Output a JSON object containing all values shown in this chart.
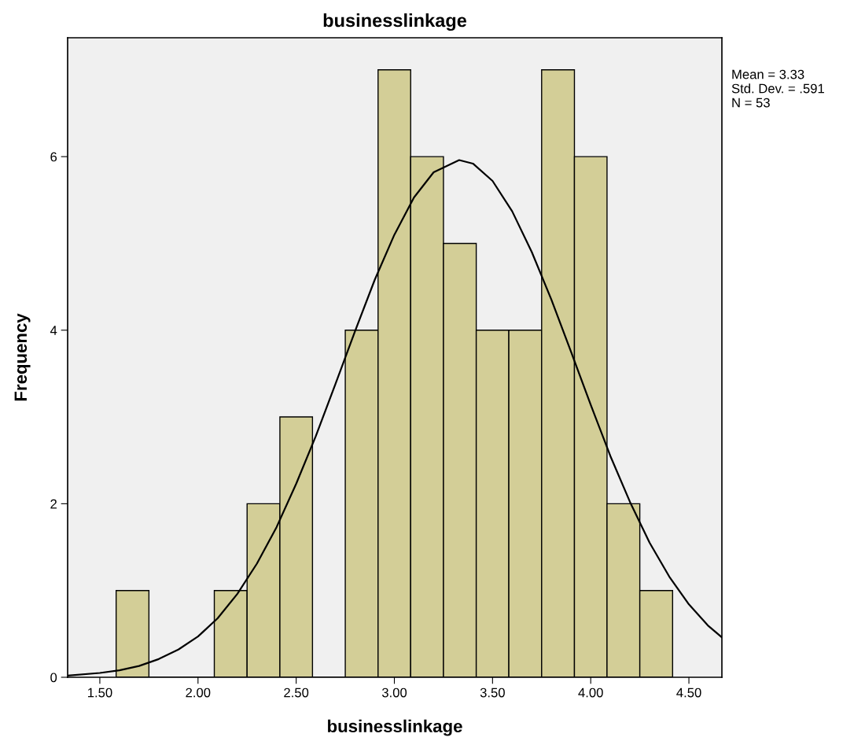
{
  "chart_data": {
    "type": "histogram",
    "title": "businesslinkage",
    "xlabel": "businesslinkage",
    "ylabel": "Frequency",
    "xlim": [
      1.336,
      4.668
    ],
    "ylim": [
      0,
      7.37
    ],
    "xticks": [
      {
        "value": 1.5,
        "label": "1.50"
      },
      {
        "value": 2.0,
        "label": "2.00"
      },
      {
        "value": 2.5,
        "label": "2.50"
      },
      {
        "value": 3.0,
        "label": "3.00"
      },
      {
        "value": 3.5,
        "label": "3.50"
      },
      {
        "value": 4.0,
        "label": "4.00"
      },
      {
        "value": 4.5,
        "label": "4.50"
      }
    ],
    "yticks": [
      0,
      2,
      4,
      6
    ],
    "grid": false,
    "legend": false,
    "marker": "none",
    "series": [
      {
        "color": "#d3ce97",
        "bins": [
          1.583,
          1.75,
          1.917,
          2.083,
          2.25,
          2.417,
          2.583,
          2.75,
          2.917,
          3.083,
          3.25,
          3.417,
          3.583,
          3.75,
          3.917,
          4.083,
          4.25,
          4.417
        ],
        "values": [
          1,
          0,
          0,
          1,
          2,
          3,
          0,
          4,
          7,
          6,
          5,
          4,
          4,
          7,
          6,
          2,
          1
        ]
      },
      {
        "type": "line",
        "color": "#000000",
        "line_style": "solid",
        "x": [
          1.336,
          1.5,
          1.6,
          1.7,
          1.8,
          1.9,
          2.0,
          2.1,
          2.2,
          2.3,
          2.4,
          2.5,
          2.6,
          2.7,
          2.8,
          2.9,
          3.0,
          3.1,
          3.2,
          3.33,
          3.4,
          3.5,
          3.6,
          3.7,
          3.8,
          3.9,
          4.0,
          4.1,
          4.2,
          4.3,
          4.4,
          4.5,
          4.6,
          4.668
        ],
        "values": [
          0.02,
          0.05,
          0.08,
          0.13,
          0.21,
          0.32,
          0.47,
          0.68,
          0.96,
          1.31,
          1.73,
          2.23,
          2.78,
          3.38,
          3.99,
          4.58,
          5.1,
          5.53,
          5.82,
          5.96,
          5.92,
          5.72,
          5.37,
          4.9,
          4.35,
          3.75,
          3.14,
          2.55,
          2.02,
          1.55,
          1.16,
          0.84,
          0.59,
          0.46
        ]
      }
    ],
    "annotations": [
      "Mean = 3.33",
      "Std. Dev. = .591",
      "N = 53"
    ]
  }
}
